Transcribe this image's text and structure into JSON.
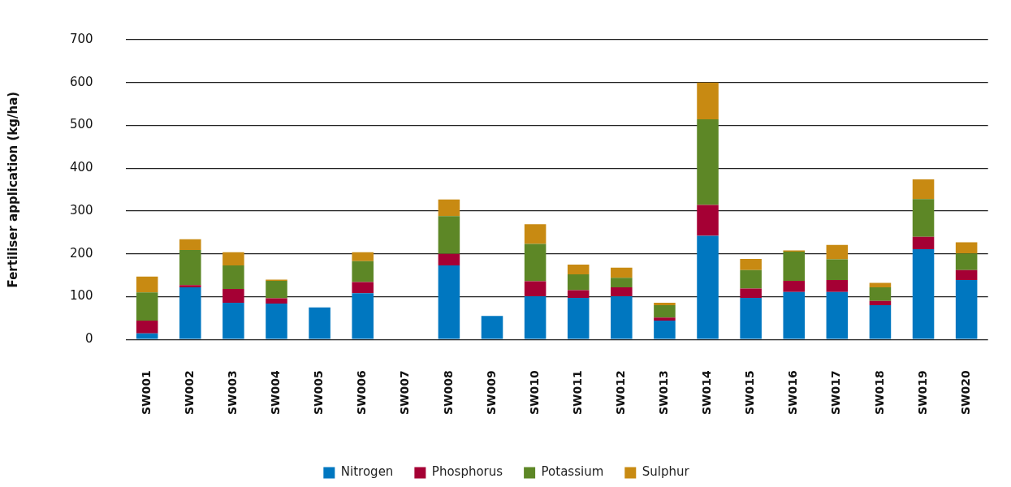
{
  "chart_data": {
    "type": "bar",
    "stacked": true,
    "ylabel": "Fertiliser application (kg/ha)",
    "categories": [
      "SW001",
      "SW002",
      "SW003",
      "SW004",
      "SW005",
      "SW006",
      "SW007",
      "SW008",
      "SW009",
      "SW010",
      "SW011",
      "SW012",
      "SW013",
      "SW014",
      "SW015",
      "SW016",
      "SW017",
      "SW018",
      "SW019",
      "SW020"
    ],
    "series": [
      {
        "name": "Nitrogen",
        "color": "#0077c0",
        "values": [
          14,
          122,
          86,
          84,
          75,
          108,
          null,
          173,
          55,
          101,
          97,
          101,
          44,
          242,
          97,
          111,
          111,
          80,
          211,
          139
        ]
      },
      {
        "name": "Phosphorus",
        "color": "#a50034",
        "values": [
          30,
          5,
          32,
          12,
          null,
          26,
          null,
          27,
          null,
          35,
          18,
          21,
          7,
          72,
          22,
          26,
          28,
          10,
          29,
          23
        ]
      },
      {
        "name": "Potassium",
        "color": "#5d8726",
        "values": [
          66,
          82,
          55,
          41,
          null,
          49,
          null,
          88,
          null,
          87,
          37,
          22,
          29,
          200,
          43,
          68,
          48,
          32,
          88,
          39
        ]
      },
      {
        "name": "Sulphur",
        "color": "#c88a12",
        "values": [
          37,
          25,
          31,
          3,
          null,
          21,
          null,
          39,
          null,
          46,
          23,
          24,
          6,
          86,
          26,
          3,
          34,
          10,
          46,
          26
        ]
      }
    ],
    "ylim": [
      0,
      700
    ],
    "yticks": [
      0,
      100,
      200,
      300,
      400,
      500,
      600,
      700
    ],
    "grid": "y",
    "legend": "bottom"
  }
}
